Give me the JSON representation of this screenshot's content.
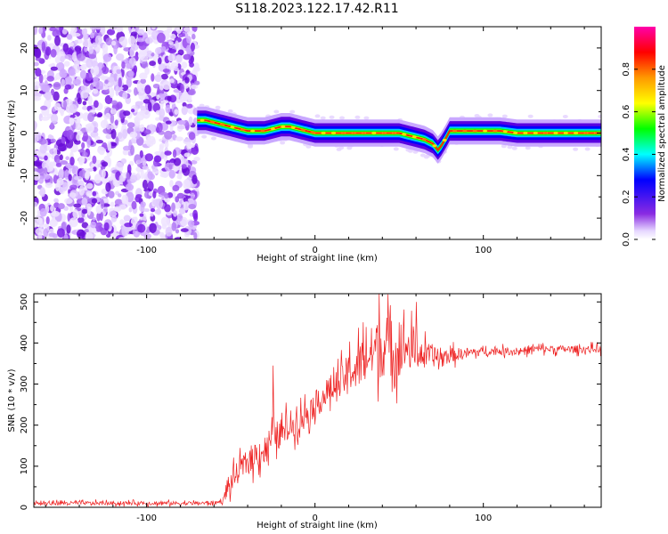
{
  "title": "S118.2023.122.17.42.R11",
  "colors": {
    "snr_line": "#ee2222",
    "axis": "#000000",
    "colormap": [
      "#ffffff",
      "#e6d7ff",
      "#8a2be2",
      "#0000ff",
      "#00ffff",
      "#00ff00",
      "#ffff00",
      "#ff9900",
      "#ff0000",
      "#ff00aa"
    ]
  },
  "chart_data": [
    {
      "type": "heatmap",
      "title": "S118.2023.122.17.42.R11",
      "xlabel": "Height of straight line (km)",
      "ylabel": "Frequency (Hz)",
      "xlim": [
        -167,
        170
      ],
      "ylim": [
        -25,
        25
      ],
      "x_ticks": [
        -100,
        0,
        100
      ],
      "y_ticks": [
        20,
        10,
        0,
        -10,
        -20
      ],
      "colorbar": {
        "label": "Normalized spectral amplitude",
        "range": [
          0,
          1
        ],
        "ticks": [
          0.0,
          0.2,
          0.4,
          0.6,
          0.8
        ]
      },
      "noise_region": {
        "x": [
          -167,
          -70
        ],
        "amplitude": "low (0.2-0.4)"
      },
      "ridge": {
        "x": [
          -70,
          -65,
          -60,
          -55,
          -50,
          -45,
          -40,
          -35,
          -30,
          -25,
          -20,
          -15,
          -10,
          -5,
          0,
          10,
          20,
          30,
          40,
          50,
          55,
          60,
          65,
          70,
          73,
          75,
          78,
          80,
          85,
          90,
          100,
          110,
          120,
          130,
          140,
          150,
          160,
          170
        ],
        "freq": [
          3,
          3,
          2.5,
          2,
          1.5,
          1,
          0.5,
          0.5,
          0.5,
          1,
          1.5,
          1.5,
          1,
          0.5,
          0,
          0,
          0,
          0,
          0,
          0,
          -0.5,
          -1,
          -1.5,
          -2.5,
          -4,
          -3,
          -1,
          0.5,
          0.5,
          0.5,
          0.5,
          0.5,
          0,
          0,
          0,
          0,
          0,
          0
        ],
        "amplitude": "high (0.8-1.0)"
      }
    },
    {
      "type": "line",
      "xlabel": "Height of straight line (km)",
      "ylabel": "SNR (10 * v/v)",
      "xlim": [
        -167,
        170
      ],
      "ylim": [
        0,
        520
      ],
      "x_ticks": [
        -100,
        0,
        100
      ],
      "y_ticks": [
        0,
        100,
        200,
        300,
        400,
        500
      ],
      "series": [
        {
          "x": [
            -167,
            -150,
            -120,
            -90,
            -70,
            -60,
            -55,
            -50,
            -45,
            -40,
            -35,
            -30,
            -25,
            -20,
            -15,
            -10,
            -5,
            0,
            5,
            10,
            15,
            20,
            25,
            30,
            35,
            40,
            45,
            50,
            55,
            60,
            65,
            70,
            75,
            80,
            90,
            100,
            110,
            120,
            130,
            140,
            150,
            160,
            170
          ],
          "values": [
            10,
            10,
            10,
            10,
            10,
            10,
            15,
            60,
            90,
            110,
            130,
            140,
            170,
            180,
            200,
            210,
            230,
            250,
            270,
            290,
            300,
            330,
            340,
            360,
            380,
            390,
            390,
            380,
            390,
            380,
            370,
            370,
            360,
            370,
            375,
            380,
            380,
            380,
            385,
            385,
            385,
            385,
            385
          ],
          "noise_amplitude": [
            10,
            10,
            10,
            10,
            10,
            10,
            10,
            60,
            60,
            70,
            80,
            80,
            80,
            80,
            80,
            70,
            70,
            70,
            80,
            80,
            90,
            100,
            120,
            140,
            150,
            160,
            160,
            140,
            120,
            100,
            70,
            60,
            50,
            40,
            30,
            20,
            20,
            20,
            20,
            20,
            20,
            20,
            20
          ],
          "spike_max": [
            {
              "x": 38,
              "value": 520
            },
            {
              "x": 60,
              "value": 500
            },
            {
              "x": -25,
              "value": 345
            }
          ]
        }
      ]
    }
  ]
}
